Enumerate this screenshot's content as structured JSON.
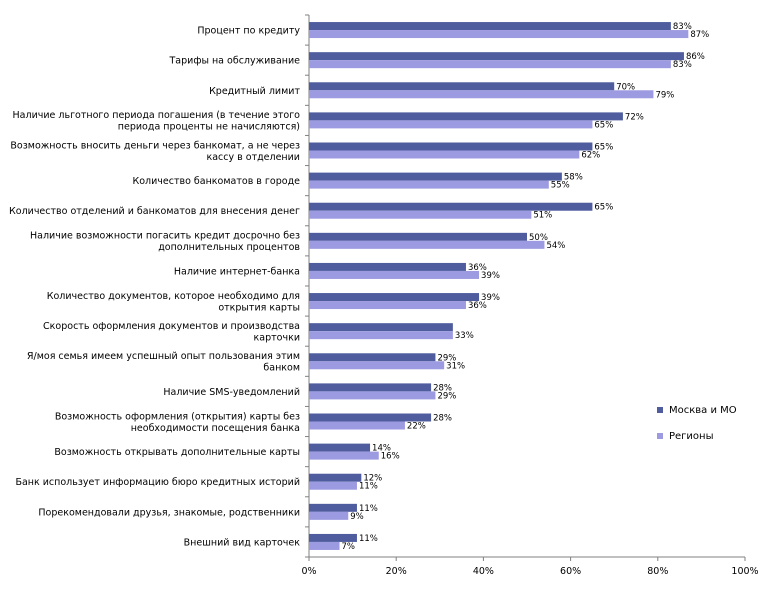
{
  "chart_data": {
    "type": "bar",
    "orientation": "horizontal",
    "categories": [
      [
        "Процент по кредиту"
      ],
      [
        "Тарифы на обслуживание"
      ],
      [
        "Кредитный лимит"
      ],
      [
        "Наличие льготного периода погашения (в течение этого",
        "периода проценты не начисляются)"
      ],
      [
        "Возможность вносить деньги через банкомат, а не через",
        "кассу в отделении"
      ],
      [
        "Количество банкоматов в городе"
      ],
      [
        "Количество отделений и банкоматов для внесения денег"
      ],
      [
        "Наличие возможности погасить кредит досрочно без",
        "дополнительных процентов"
      ],
      [
        "Наличие интернет-банка"
      ],
      [
        "Количество документов, которое необходимо для",
        "открытия карты"
      ],
      [
        "Скорость оформления документов и производства",
        "карточки"
      ],
      [
        "Я/моя семья имеем успешный опыт пользования этим",
        "банком"
      ],
      [
        "Наличие SMS-уведомлений"
      ],
      [
        "Возможность оформления (открытия) карты без",
        "необходимости посещения банка"
      ],
      [
        "Возможность открывать дополнительные карты"
      ],
      [
        "Банк использует информацию бюро кредитных историй"
      ],
      [
        "Порекомендовали друзья, знакомые, родственники"
      ],
      [
        "Внешний вид карточек"
      ]
    ],
    "series": [
      {
        "name": "Москва и МО",
        "color": "#4F5D9E",
        "values": [
          83,
          86,
          70,
          72,
          65,
          58,
          65,
          50,
          36,
          39,
          33,
          29,
          28,
          28,
          14,
          12,
          11,
          11
        ]
      },
      {
        "name": "Регионы",
        "color": "#9C9AE0",
        "values": [
          87,
          83,
          79,
          65,
          62,
          55,
          51,
          54,
          39,
          36,
          33,
          31,
          29,
          22,
          16,
          11,
          9,
          7
        ]
      }
    ],
    "value_labels": [
      [
        "83%",
        "87%"
      ],
      [
        "86%",
        "83%"
      ],
      [
        "70%",
        "79%"
      ],
      [
        "72%",
        "65%"
      ],
      [
        "65%",
        "62%"
      ],
      [
        "58%",
        "55%"
      ],
      [
        "65%",
        "51%"
      ],
      [
        "50%",
        "54%"
      ],
      [
        "36%",
        "39%"
      ],
      [
        "39%",
        "36%"
      ],
      [
        "",
        "33%"
      ],
      [
        "29%",
        "31%"
      ],
      [
        "28%",
        "29%"
      ],
      [
        "28%",
        "22%"
      ],
      [
        "14%",
        "16%"
      ],
      [
        "12%",
        "11%"
      ],
      [
        "11%",
        "9%"
      ],
      [
        "11%",
        "7%"
      ]
    ],
    "xlim": [
      0,
      100
    ],
    "ticks": [
      "0%",
      "20%",
      "40%",
      "60%",
      "80%",
      "100%"
    ],
    "grid": false,
    "legend_placement": "right"
  }
}
